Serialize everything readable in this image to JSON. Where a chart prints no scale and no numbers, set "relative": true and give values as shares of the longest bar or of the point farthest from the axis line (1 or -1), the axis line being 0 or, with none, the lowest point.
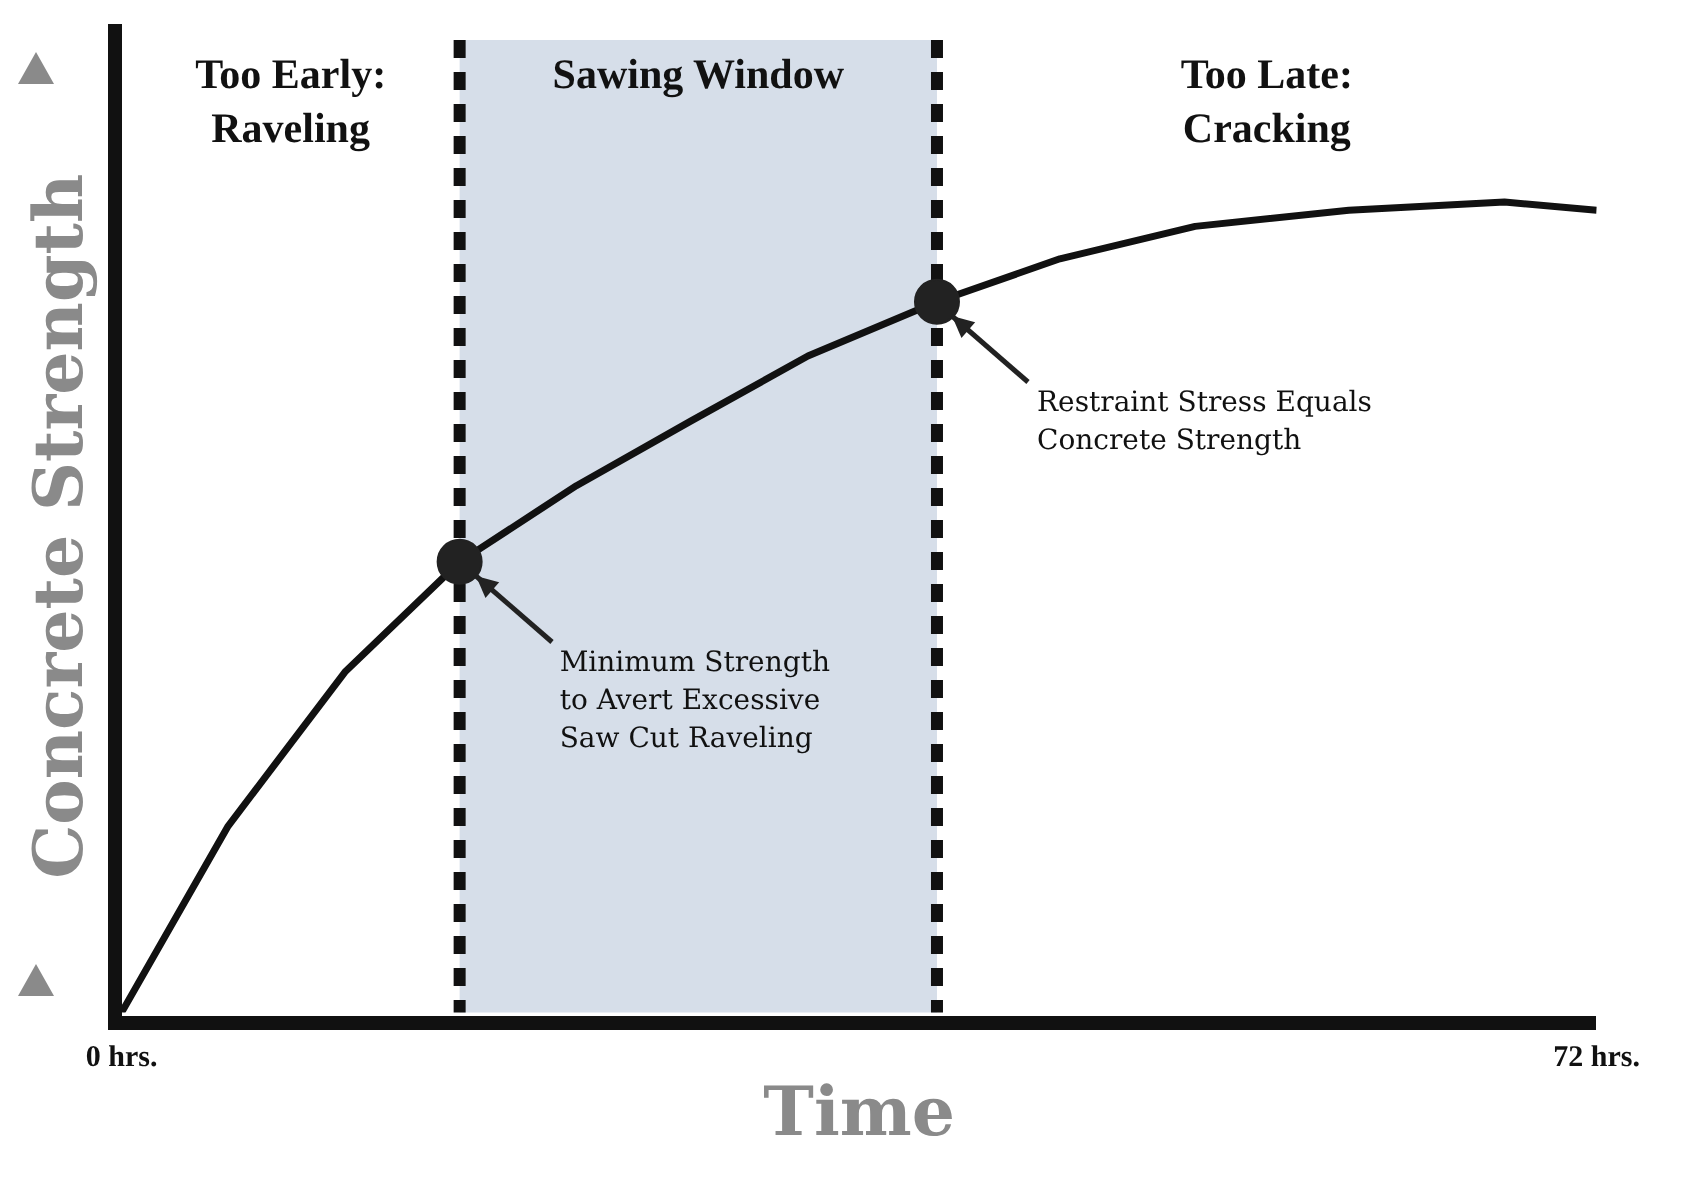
{
  "chart_data": {
    "type": "line",
    "relative": true,
    "xlabel": "Time",
    "ylabel": "Concrete Strength",
    "xlim": [
      0,
      72
    ],
    "xticks": [
      {
        "value": 0,
        "label": "0 hrs."
      },
      {
        "value": 72,
        "label": "72 hrs."
      }
    ],
    "grid": false,
    "legend": false,
    "series": [
      {
        "type": "line",
        "color": "#111111",
        "marker": "none",
        "x": [
          0,
          5.2,
          10.9,
          16.5,
          22.2,
          27.8,
          33.5,
          39.8,
          45.8,
          52.4,
          59.9,
          67.5,
          72
        ],
        "values": [
          0,
          0.23,
          0.42,
          0.556,
          0.65,
          0.73,
          0.81,
          0.877,
          0.93,
          0.97,
          0.99,
          1,
          0.99
        ]
      },
      {
        "type": "scatter",
        "color": "#222222",
        "marker": "circle",
        "x": [
          16.5,
          39.8
        ],
        "values": [
          0.556,
          0.877
        ]
      }
    ],
    "bands": [
      {
        "axis": "x",
        "from": 16.5,
        "to": 39.8,
        "label": "Sawing Window",
        "color": "#d6dee9"
      }
    ],
    "ref_lines": [
      {
        "axis": "x",
        "value": 16.5,
        "line_style": "dashed",
        "color": "#111111"
      },
      {
        "axis": "x",
        "value": 39.8,
        "line_style": "dashed",
        "color": "#111111"
      }
    ],
    "annotations": [
      "Too Early:\nRaveling",
      "Too Late:\nCracking",
      "Minimum Strength\nto Avert Excessive\nSaw Cut Raveling",
      "Restraint Stress Equals\nConcrete Strength"
    ]
  }
}
